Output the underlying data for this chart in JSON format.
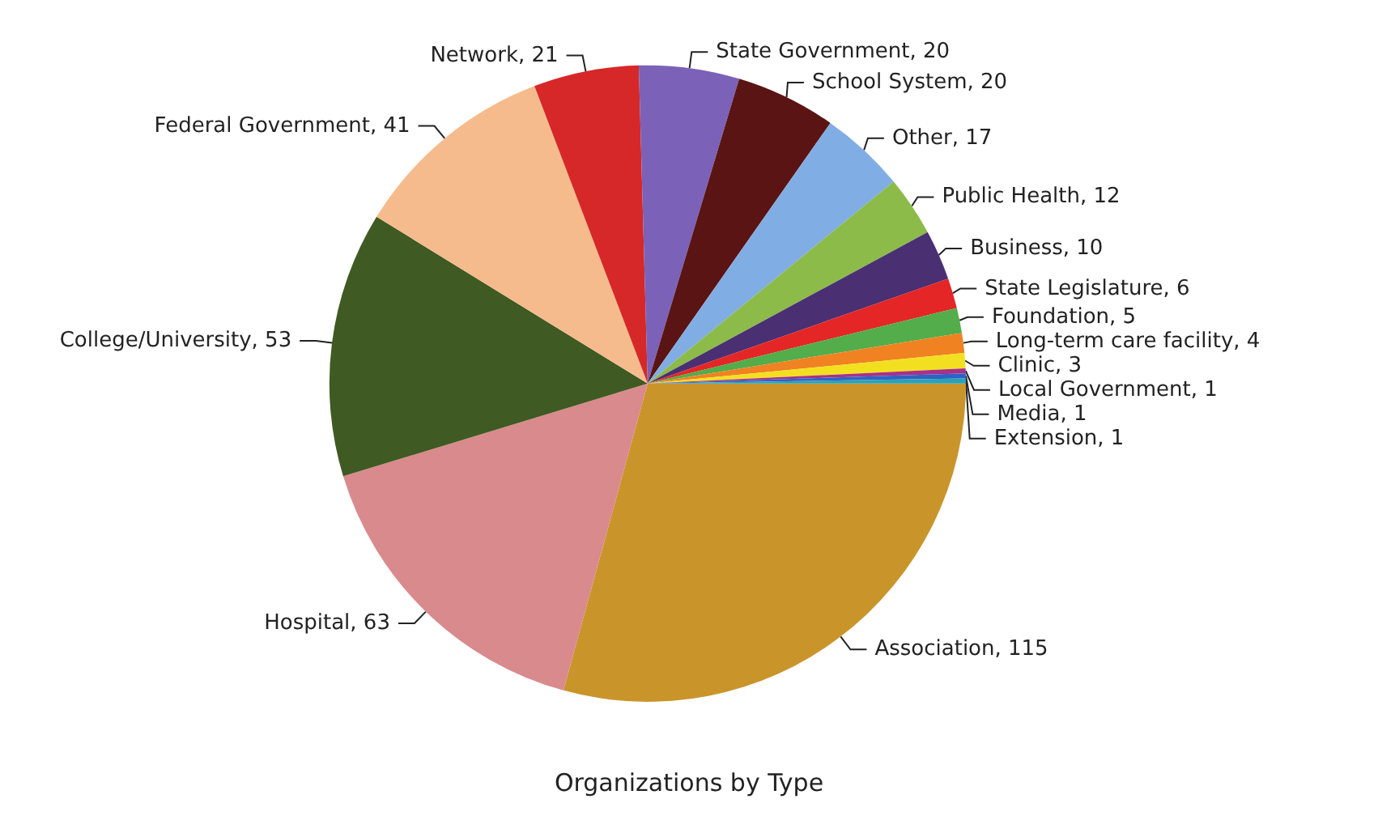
{
  "chart_data": {
    "type": "pie",
    "title": "Organizations by Type",
    "categories": [
      "Association",
      "Hospital",
      "College/University",
      "Federal Government",
      "Network",
      "State Government",
      "School System",
      "Other",
      "Public Health",
      "Business",
      "State Legislature",
      "Foundation",
      "Long-term care facility",
      "Clinic",
      "Local Government",
      "Media",
      "Extension"
    ],
    "values": [
      115,
      63,
      53,
      41,
      21,
      20,
      20,
      17,
      12,
      10,
      6,
      5,
      4,
      3,
      1,
      1,
      1
    ],
    "value_labels": [
      ", 115",
      ", 63",
      ", 53",
      ", 41",
      ", 21",
      ", 20",
      ", 20",
      ", 17",
      ", 12",
      ", 10",
      ", 6",
      ", 5",
      ", 4",
      ", 3",
      ", 1",
      ", 1",
      ", 1"
    ],
    "colors": [
      "#c9952b",
      "#d98a8c",
      "#3f5a22",
      "#f6bb8c",
      "#d62828",
      "#7b62b8",
      "#5a1414",
      "#80ade3",
      "#8cbb4a",
      "#4a2f72",
      "#e42626",
      "#52ad4a",
      "#f08222",
      "#f2e020",
      "#a8308a",
      "#2f62c4",
      "#2aa2b6"
    ],
    "legend": false
  }
}
